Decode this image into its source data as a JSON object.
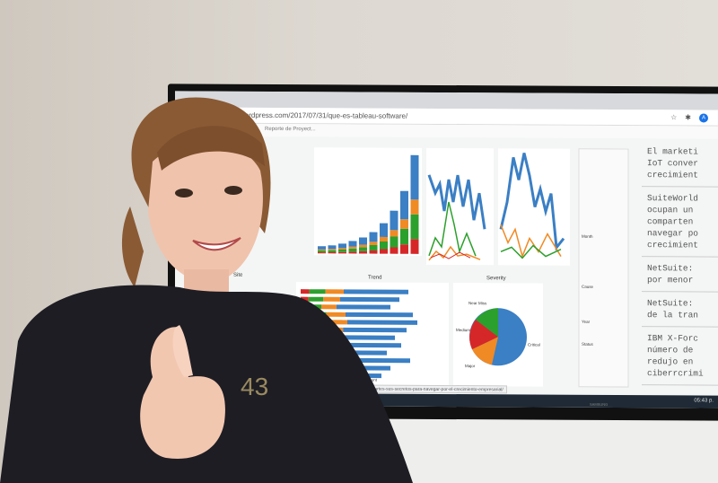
{
  "browser": {
    "url": "wordpress.com/2017/07/31/que-es-tableau-software/",
    "bookmark": "Reporte de Proyect...",
    "profile_initial": "A",
    "status_url": "...ggel-central-y-compartes-sus-secretos-para-navegar-por-el-crecimiento-empresarial/"
  },
  "dashboard": {
    "trend_title": "Trend",
    "severity_title": "Severity",
    "site_title": "Site",
    "pie_labels": [
      "Near Miss",
      "Medium",
      "Major",
      "Critical"
    ],
    "legend_headers": [
      "Cause",
      "Severity",
      "Year",
      "Status",
      "Month",
      "Site"
    ],
    "count_label": "Count"
  },
  "article": {
    "paragraphs": [
      "El marketi\nIoT conver\ncrecimient",
      "SuiteWorld\nocupan un\ncomparten\nnavegar po\ncrecimient",
      "NetSuite:\npor menor",
      "NetSuite:\nde la tran",
      "IBM X-Forc\nnúmero de\nredujo en\nciberrcrimi"
    ]
  },
  "taskbar": {
    "clock": "05:43 p."
  },
  "monitor": {
    "brand": "SAMSUNG"
  },
  "shirt": {
    "logo": "43"
  },
  "colors": {
    "blue": "#3b7fc4",
    "orange": "#f08a24",
    "green": "#2ca02c",
    "red": "#d62728",
    "shirt": "#1e1d24",
    "hair": "#8a5a34"
  }
}
